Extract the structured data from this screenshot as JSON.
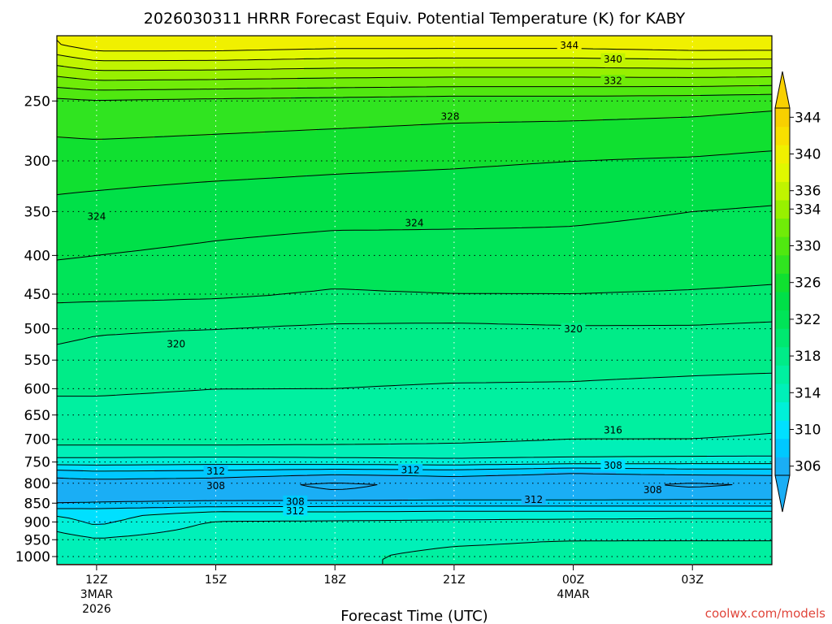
{
  "chart_data": {
    "type": "heatmap",
    "title": "2026030311 HRRR Forecast Equiv. Potential Temperature (K) for KABY",
    "xlabel": "Forecast Time (UTC)",
    "ylabel": "",
    "variable": "Equiv. Potential Temperature (K)",
    "y_axis": {
      "type": "pressure_log",
      "ticks": [
        250,
        300,
        350,
        400,
        450,
        500,
        550,
        600,
        650,
        700,
        750,
        800,
        850,
        900,
        950,
        1000
      ],
      "range": [
        1025,
        205
      ]
    },
    "x_axis": {
      "range_hours": [
        -1,
        17
      ],
      "ticks": [
        {
          "hour": 0,
          "label": "12Z",
          "sub1": "3MAR",
          "sub2": "2026"
        },
        {
          "hour": 3,
          "label": "15Z",
          "sub1": "",
          "sub2": ""
        },
        {
          "hour": 6,
          "label": "18Z",
          "sub1": "",
          "sub2": ""
        },
        {
          "hour": 9,
          "label": "21Z",
          "sub1": "",
          "sub2": ""
        },
        {
          "hour": 12,
          "label": "00Z",
          "sub1": "4MAR",
          "sub2": ""
        },
        {
          "hour": 15,
          "label": "03Z",
          "sub1": "",
          "sub2": ""
        }
      ]
    },
    "colorbar": {
      "levels": [
        306,
        308,
        310,
        312,
        314,
        316,
        318,
        320,
        322,
        324,
        326,
        328,
        330,
        332,
        334,
        336,
        338,
        340,
        342,
        344
      ],
      "tick_labels": [
        306,
        310,
        314,
        318,
        322,
        326,
        330,
        334,
        336,
        340,
        344
      ],
      "colors": [
        "#1aaef5",
        "#00c8ff",
        "#00e0ff",
        "#00f0d8",
        "#00f0b8",
        "#00f0a0",
        "#00ec88",
        "#00e870",
        "#00e458",
        "#00e048",
        "#10e030",
        "#30e420",
        "#50e810",
        "#70ec08",
        "#98f000",
        "#c0f400",
        "#e0f800",
        "#f0f000",
        "#f8e000",
        "#f8d000"
      ]
    },
    "profiles": [
      {
        "hour": -1,
        "levels": [
          1000,
          950,
          900,
          875,
          850,
          825,
          800,
          775,
          750,
          725,
          700,
          650,
          600,
          550,
          500,
          450,
          400,
          350,
          300,
          250,
          210
        ],
        "values": [
          315.2,
          315.0,
          312.8,
          311.5,
          308.0,
          306.5,
          307.0,
          309.0,
          313.0,
          315.5,
          316.5,
          317.5,
          318.2,
          319.5,
          320.5,
          322.5,
          324.2,
          325.5,
          327.0,
          329.5,
          340.0
        ]
      },
      {
        "hour": 0,
        "levels": [
          1000,
          950,
          900,
          875,
          850,
          825,
          800,
          775,
          750,
          725,
          700,
          650,
          600,
          550,
          500,
          450,
          400,
          350,
          300,
          250,
          210
        ],
        "values": [
          314.8,
          314.2,
          311.5,
          311.3,
          308.2,
          306.5,
          307.1,
          309.5,
          313.0,
          315.5,
          316.5,
          317.5,
          318.2,
          319.3,
          320.2,
          322.5,
          324.0,
          325.3,
          327.0,
          329.8,
          341.5
        ]
      },
      {
        "hour": 3,
        "levels": [
          1000,
          950,
          900,
          875,
          850,
          825,
          800,
          775,
          750,
          725,
          700,
          650,
          600,
          550,
          500,
          450,
          400,
          350,
          300,
          250,
          210
        ],
        "values": [
          315.5,
          315.2,
          314.2,
          312.5,
          308.5,
          306.6,
          306.8,
          309.2,
          312.8,
          315.5,
          316.5,
          317.4,
          318.0,
          319.0,
          320.0,
          322.3,
          323.6,
          324.8,
          326.8,
          329.5,
          341.5
        ]
      },
      {
        "hour": 6,
        "levels": [
          1000,
          950,
          900,
          875,
          850,
          825,
          800,
          775,
          750,
          725,
          700,
          650,
          600,
          550,
          500,
          450,
          400,
          350,
          300,
          250,
          210
        ],
        "values": [
          315.8,
          315.5,
          314.3,
          312.4,
          308.7,
          306.2,
          305.6,
          308.5,
          313.0,
          315.5,
          316.4,
          317.2,
          318.0,
          318.8,
          319.7,
          321.8,
          323.2,
          324.6,
          326.5,
          329.3,
          341.0
        ]
      },
      {
        "hour": 9,
        "levels": [
          1000,
          950,
          900,
          875,
          850,
          825,
          800,
          775,
          750,
          725,
          700,
          650,
          600,
          550,
          500,
          450,
          400,
          350,
          300,
          250,
          210
        ],
        "values": [
          316.3,
          315.8,
          314.4,
          312.6,
          308.8,
          306.4,
          306.6,
          308.8,
          313.2,
          315.6,
          316.2,
          317.0,
          317.8,
          318.8,
          319.6,
          322.0,
          323.4,
          324.4,
          326.3,
          329.0,
          341.0
        ]
      },
      {
        "hour": 12,
        "levels": [
          1000,
          950,
          900,
          875,
          850,
          825,
          800,
          775,
          750,
          725,
          700,
          650,
          600,
          550,
          500,
          450,
          400,
          350,
          300,
          250,
          210
        ],
        "values": [
          316.4,
          316.0,
          314.6,
          312.6,
          308.8,
          306.4,
          306.8,
          307.8,
          312.8,
          315.4,
          316.0,
          316.8,
          317.8,
          318.6,
          319.8,
          322.0,
          323.6,
          324.2,
          326.0,
          329.0,
          341.0
        ]
      },
      {
        "hour": 15,
        "levels": [
          1000,
          950,
          900,
          875,
          850,
          825,
          800,
          775,
          750,
          725,
          700,
          650,
          600,
          550,
          500,
          450,
          400,
          350,
          300,
          250,
          210
        ],
        "values": [
          316.4,
          316.0,
          314.8,
          312.6,
          308.8,
          306.6,
          305.6,
          308.6,
          312.6,
          315.3,
          316.0,
          316.8,
          317.6,
          318.5,
          319.8,
          321.8,
          323.5,
          324.0,
          325.8,
          328.8,
          341.5
        ]
      },
      {
        "hour": 17,
        "levels": [
          1000,
          950,
          900,
          875,
          850,
          825,
          800,
          775,
          750,
          725,
          700,
          650,
          600,
          550,
          500,
          450,
          400,
          350,
          300,
          250,
          210
        ],
        "values": [
          316.4,
          316.0,
          314.8,
          312.6,
          308.8,
          306.6,
          306.2,
          308.6,
          312.6,
          315.2,
          315.8,
          316.6,
          317.4,
          318.5,
          319.6,
          321.6,
          323.2,
          323.8,
          325.5,
          328.5,
          341.5
        ]
      }
    ],
    "contour_labels": [
      {
        "value": "344",
        "hour": 11.9,
        "p": 211
      },
      {
        "value": "340",
        "hour": 13.0,
        "p": 220
      },
      {
        "value": "332",
        "hour": 13.0,
        "p": 235
      },
      {
        "value": "328",
        "hour": 8.9,
        "p": 262
      },
      {
        "value": "324",
        "hour": 0.0,
        "p": 355
      },
      {
        "value": "324",
        "hour": 8.0,
        "p": 362
      },
      {
        "value": "320",
        "hour": 2.0,
        "p": 523
      },
      {
        "value": "320",
        "hour": 12.0,
        "p": 500
      },
      {
        "value": "316",
        "hour": 13.0,
        "p": 680
      },
      {
        "value": "312",
        "hour": 3.0,
        "p": 770
      },
      {
        "value": "312",
        "hour": 7.9,
        "p": 768
      },
      {
        "value": "312",
        "hour": 11.0,
        "p": 840
      },
      {
        "value": "312",
        "hour": 5.0,
        "p": 870
      },
      {
        "value": "308",
        "hour": 13.0,
        "p": 757
      },
      {
        "value": "308",
        "hour": 3.0,
        "p": 805
      },
      {
        "value": "308",
        "hour": 14.0,
        "p": 815
      },
      {
        "value": "308",
        "hour": 5.0,
        "p": 845
      }
    ],
    "ground_color": "#a0522d",
    "legend": "colorbar-right"
  },
  "credit": "coolwx.com/models"
}
